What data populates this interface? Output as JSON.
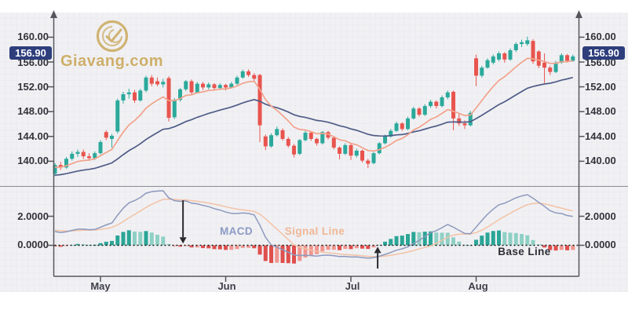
{
  "watermark": {
    "text": "Giavang.com",
    "gold": "#c9a452"
  },
  "price_axis": {
    "labels": [
      "160.00",
      "156.00",
      "152.00",
      "148.00",
      "144.00",
      "140.00"
    ],
    "values": [
      160,
      156,
      152,
      148,
      144,
      140
    ],
    "current_price": "156.90"
  },
  "macd_axis": {
    "labels": [
      "2.0000",
      "0.0000"
    ],
    "values": [
      2,
      0
    ]
  },
  "x_axis": {
    "months": [
      "May",
      "Jun",
      "Jul",
      "Aug"
    ],
    "month_tick_indices": [
      8,
      30,
      52,
      74
    ]
  },
  "panel_labels": {
    "macd": "MACD",
    "signal": "Signal Line",
    "base": "Base Line"
  },
  "colors": {
    "up": "#2ba99b",
    "down": "#e8544e",
    "hist_up": "#2aa596",
    "hist_up_light": "#8fd0c5",
    "hist_down": "#df4f4c",
    "hist_down_light": "#f0968f",
    "price_fast_line": "#f2a28b",
    "price_slow_line": "#4f5c86",
    "macd_line": "#8d99bd",
    "signal_line": "#f3c2a4",
    "badge": "#2e3e7c",
    "axis": "#55555d",
    "label_text": "#33333a",
    "background": "#f1f1f4",
    "grid": "#e4e4ea",
    "divider": "#8e8e96",
    "base_dotted": "#1a1a1a",
    "arrow": "#2a2a30",
    "watermark_gold": "#c9a452"
  },
  "chart_data": {
    "type": "candlestick_with_macd",
    "title": "",
    "xlabel": "",
    "ylabel_price": "",
    "price_axis_values": [
      160,
      156,
      152,
      148,
      144,
      140
    ],
    "price_range_estimate": [
      137.5,
      160.5
    ],
    "macd_axis_values": [
      2,
      0
    ],
    "macd_range_estimate": [
      -2.2,
      3.9
    ],
    "current_price": 156.9,
    "legend": [
      "MACD",
      "Signal Line",
      "Base Line"
    ],
    "indicators": {
      "price_fast_ema": 10,
      "price_slow_ema": 30,
      "macd_fast": 12,
      "macd_slow": 26,
      "macd_signal": 9
    },
    "indicator_warmup_closes": [
      135.0,
      135.4,
      135.8,
      136.2,
      136.6,
      137.0,
      137.4,
      137.8,
      138.2,
      138.6,
      139.0,
      139.4,
      139.7,
      140.0,
      140.2,
      140.0,
      139.6,
      139.2,
      138.8,
      138.4
    ],
    "ohlc": [
      [
        138.0,
        139.7,
        137.6,
        139.4
      ],
      [
        139.4,
        139.9,
        138.6,
        139.0
      ],
      [
        139.0,
        140.7,
        138.8,
        140.4
      ],
      [
        140.4,
        141.6,
        140.1,
        141.2
      ],
      [
        141.2,
        141.9,
        140.7,
        141.5
      ],
      [
        141.5,
        141.9,
        140.4,
        140.8
      ],
      [
        140.8,
        141.3,
        140.1,
        140.5
      ],
      [
        140.5,
        141.6,
        140.2,
        141.3
      ],
      [
        141.3,
        143.4,
        141.1,
        143.1
      ],
      [
        144.7,
        145.0,
        143.4,
        143.8
      ],
      [
        143.6,
        144.4,
        142.2,
        144.1
      ],
      [
        144.8,
        150.1,
        144.5,
        149.8
      ],
      [
        149.8,
        151.2,
        149.3,
        150.8
      ],
      [
        150.8,
        151.7,
        150.1,
        151.1
      ],
      [
        151.1,
        151.5,
        149.4,
        149.8
      ],
      [
        149.8,
        151.7,
        149.6,
        151.4
      ],
      [
        151.4,
        153.8,
        151.1,
        153.5
      ],
      [
        153.5,
        153.9,
        152.1,
        152.5
      ],
      [
        152.9,
        153.5,
        152.1,
        152.4
      ],
      [
        152.4,
        153.3,
        151.9,
        152.8
      ],
      [
        153.4,
        153.7,
        146.4,
        147.0
      ],
      [
        147.1,
        150.2,
        146.8,
        149.9
      ],
      [
        149.9,
        151.8,
        149.6,
        151.6
      ],
      [
        151.6,
        153.1,
        151.3,
        152.9
      ],
      [
        152.9,
        153.2,
        150.8,
        151.1
      ],
      [
        151.1,
        152.8,
        150.9,
        152.5
      ],
      [
        152.5,
        152.8,
        151.5,
        151.9
      ],
      [
        151.9,
        152.7,
        151.6,
        152.4
      ],
      [
        152.4,
        152.6,
        151.4,
        151.8
      ],
      [
        151.8,
        152.6,
        151.5,
        152.3
      ],
      [
        152.3,
        152.5,
        151.4,
        151.9
      ],
      [
        151.9,
        152.8,
        151.7,
        152.5
      ],
      [
        152.5,
        153.8,
        152.3,
        153.5
      ],
      [
        153.5,
        154.8,
        153.3,
        154.5
      ],
      [
        154.5,
        154.8,
        153.6,
        153.9
      ],
      [
        153.9,
        154.2,
        153.0,
        153.3
      ],
      [
        153.9,
        154.1,
        143.1,
        145.8
      ],
      [
        144.0,
        144.3,
        141.8,
        142.4
      ],
      [
        142.4,
        144.5,
        142.2,
        144.2
      ],
      [
        144.2,
        145.6,
        144.0,
        145.2
      ],
      [
        145.0,
        145.3,
        143.3,
        143.6
      ],
      [
        143.6,
        143.9,
        142.2,
        142.5
      ],
      [
        142.5,
        142.8,
        140.6,
        141.1
      ],
      [
        141.2,
        143.6,
        141.0,
        143.4
      ],
      [
        143.4,
        144.9,
        143.2,
        144.6
      ],
      [
        144.6,
        144.8,
        143.3,
        143.6
      ],
      [
        143.6,
        143.8,
        142.5,
        142.9
      ],
      [
        142.9,
        144.9,
        142.7,
        144.7
      ],
      [
        144.7,
        144.9,
        143.5,
        143.8
      ],
      [
        143.8,
        144.0,
        141.9,
        142.2
      ],
      [
        142.2,
        142.4,
        140.3,
        141.2
      ],
      [
        141.2,
        142.9,
        141.0,
        142.6
      ],
      [
        142.6,
        142.8,
        140.2,
        140.9
      ],
      [
        140.9,
        142.0,
        140.6,
        141.7
      ],
      [
        141.7,
        141.9,
        139.8,
        140.1
      ],
      [
        140.1,
        140.4,
        138.9,
        139.6
      ],
      [
        139.7,
        141.5,
        139.5,
        141.3
      ],
      [
        141.3,
        143.1,
        141.1,
        142.9
      ],
      [
        142.9,
        144.3,
        142.7,
        144.0
      ],
      [
        144.0,
        145.2,
        143.8,
        144.9
      ],
      [
        144.9,
        146.4,
        144.7,
        146.1
      ],
      [
        146.1,
        146.3,
        144.9,
        145.2
      ],
      [
        145.2,
        147.2,
        145.0,
        146.9
      ],
      [
        146.9,
        148.8,
        146.7,
        148.5
      ],
      [
        148.5,
        148.7,
        147.2,
        147.5
      ],
      [
        147.5,
        149.2,
        147.3,
        148.9
      ],
      [
        148.9,
        149.9,
        148.6,
        149.6
      ],
      [
        149.6,
        149.8,
        148.5,
        148.9
      ],
      [
        148.9,
        150.6,
        148.7,
        150.3
      ],
      [
        150.3,
        151.4,
        150.0,
        151.1
      ],
      [
        151.2,
        151.4,
        145.0,
        146.9
      ],
      [
        146.9,
        147.8,
        145.7,
        146.1
      ],
      [
        146.1,
        146.6,
        145.2,
        145.8
      ],
      [
        145.8,
        148.1,
        145.6,
        147.8
      ],
      [
        156.6,
        157.2,
        152.1,
        153.8
      ],
      [
        153.8,
        155.4,
        153.5,
        155.1
      ],
      [
        155.1,
        156.6,
        154.9,
        156.3
      ],
      [
        155.9,
        157.2,
        155.6,
        156.9
      ],
      [
        156.4,
        157.7,
        156.1,
        157.4
      ],
      [
        157.4,
        157.6,
        155.9,
        156.4
      ],
      [
        156.4,
        158.2,
        156.2,
        157.9
      ],
      [
        157.9,
        159.2,
        157.6,
        158.9
      ],
      [
        158.9,
        159.6,
        158.4,
        159.2
      ],
      [
        158.9,
        160.1,
        158.6,
        159.5
      ],
      [
        159.4,
        159.7,
        155.7,
        156.1
      ],
      [
        157.7,
        157.9,
        155.0,
        155.4
      ],
      [
        155.9,
        157.4,
        152.6,
        155.1
      ],
      [
        155.1,
        155.4,
        153.9,
        154.4
      ],
      [
        154.4,
        156.2,
        154.2,
        155.9
      ],
      [
        155.9,
        157.4,
        155.7,
        157.1
      ],
      [
        157.1,
        157.3,
        155.9,
        156.2
      ],
      [
        156.2,
        157.2,
        156.0,
        156.9
      ]
    ],
    "annotations": {
      "down_arrow": {
        "index": 22.5,
        "from_value": 3.1,
        "to_value": 0.12
      },
      "up_arrow": {
        "index": 56.7,
        "from_value": -1.6,
        "to_value": -0.1
      }
    }
  }
}
